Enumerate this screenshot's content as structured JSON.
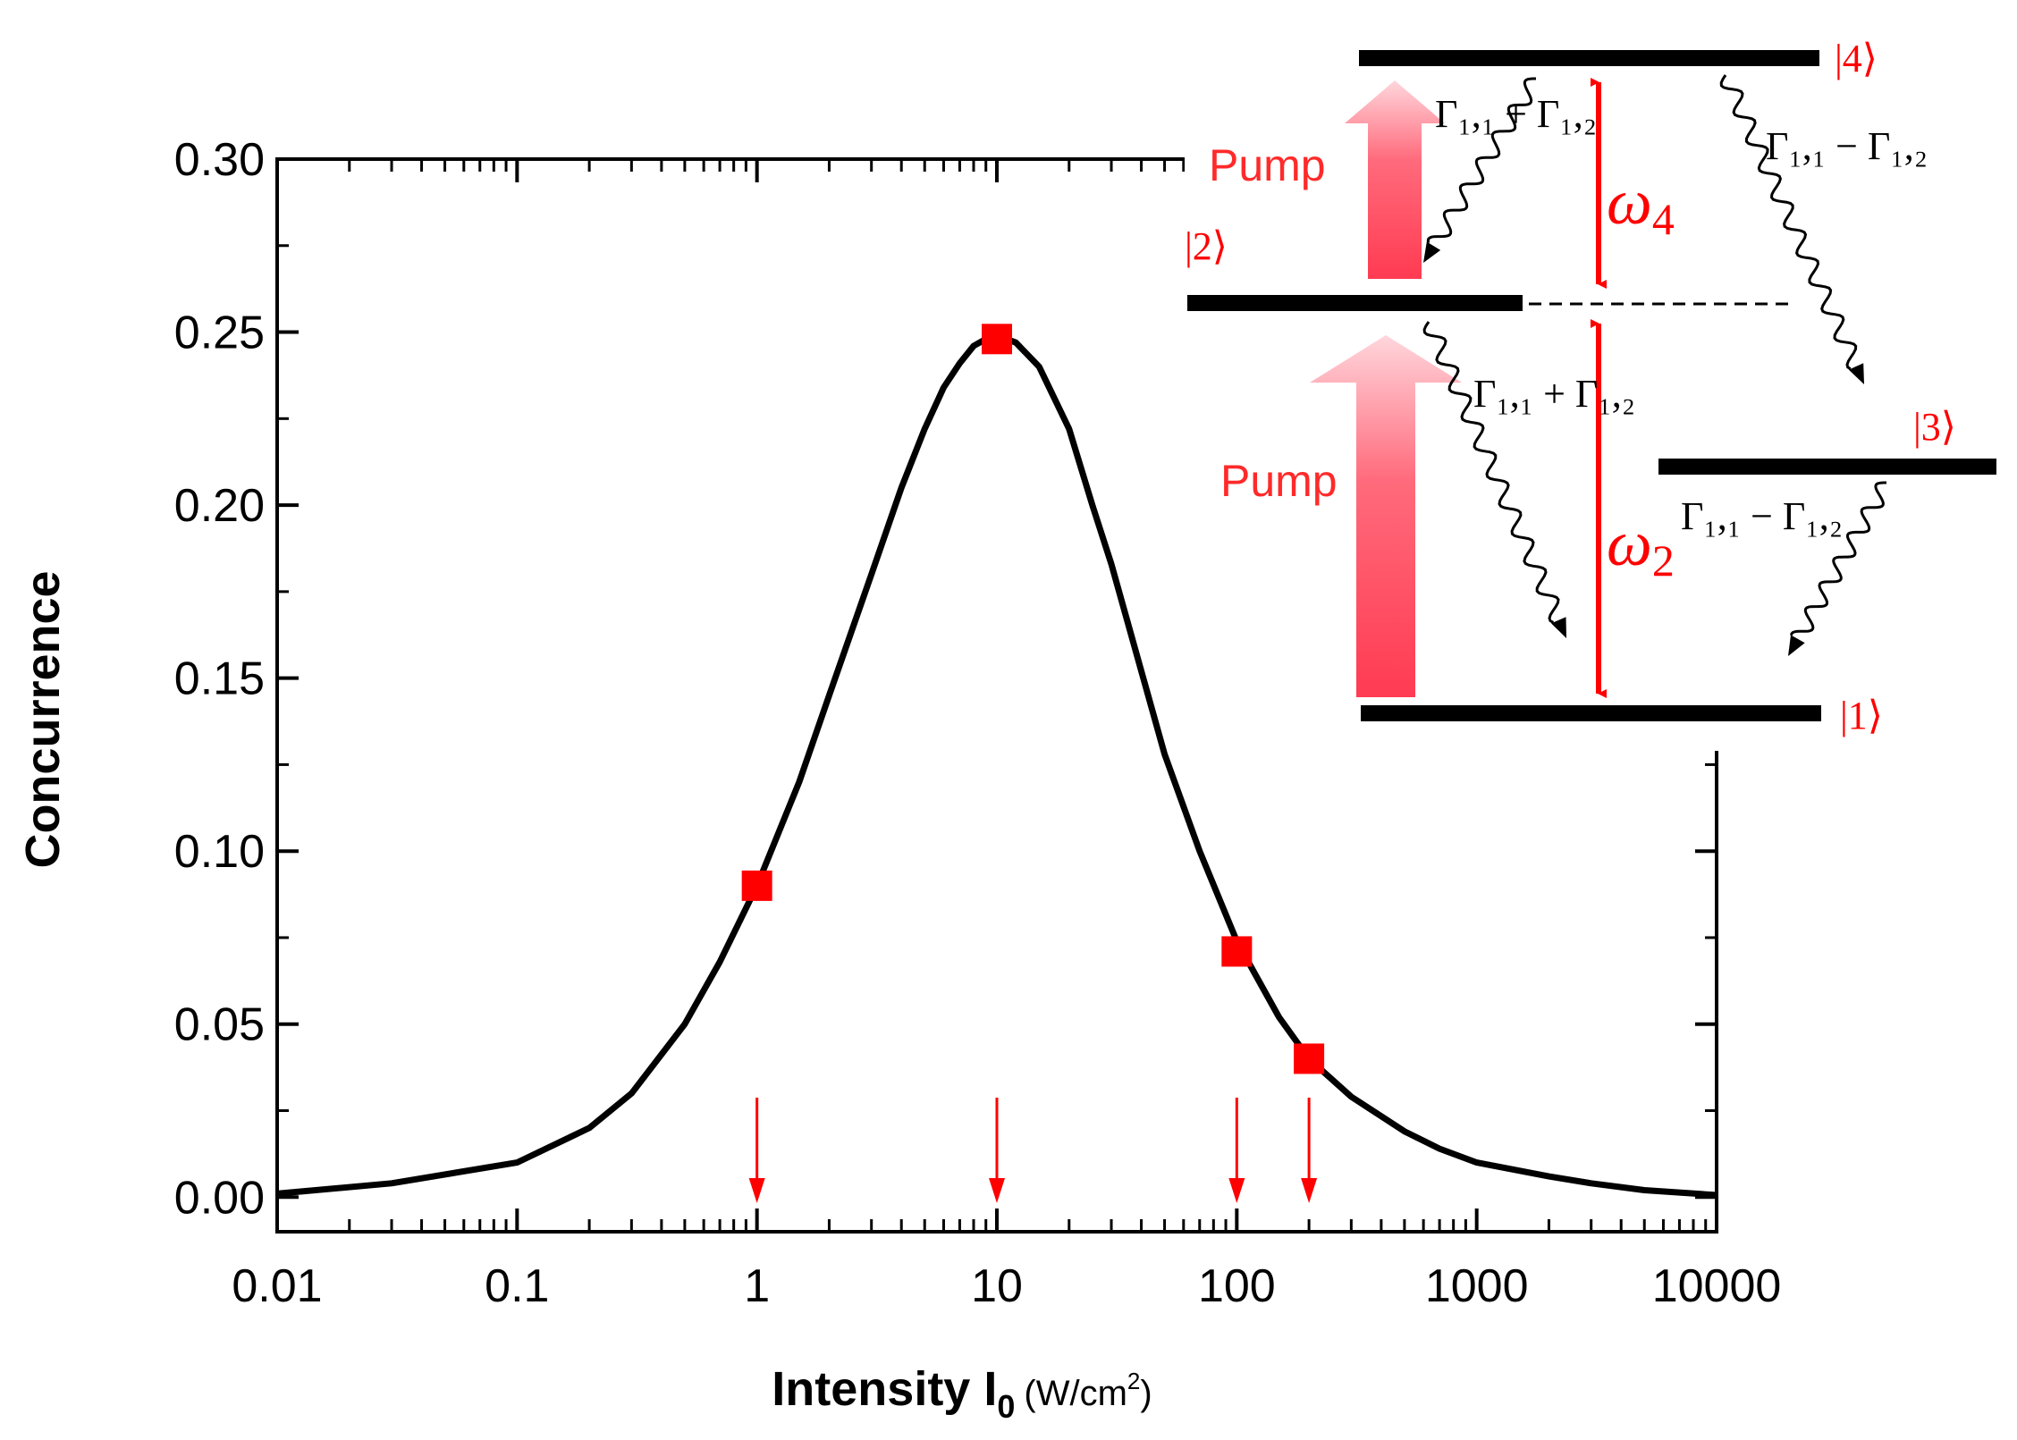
{
  "chart_data": {
    "type": "line",
    "title": "",
    "xlabel_main": "Intensity I",
    "xlabel_sub": "0",
    "xlabel_units_pre": "(W/cm",
    "xlabel_units_sup": "2",
    "xlabel_units_post": ")",
    "ylabel": "Concurrence",
    "xscale": "log",
    "xlim": [
      0.01,
      10000
    ],
    "ylim": [
      -0.01,
      0.3
    ],
    "xticks": [
      0.01,
      0.1,
      1,
      10,
      100,
      1000,
      10000
    ],
    "xtick_labels": [
      "0.01",
      "0.1",
      "1",
      "10",
      "100",
      "1000",
      "10000"
    ],
    "yticks": [
      0.0,
      0.05,
      0.1,
      0.15,
      0.2,
      0.25,
      0.3
    ],
    "ytick_labels": [
      "0.00",
      "0.05",
      "0.10",
      "0.15",
      "0.20",
      "0.25",
      "0.30"
    ],
    "series": [
      {
        "name": "Concurrence curve",
        "type": "line",
        "color": "#000000",
        "x": [
          0.01,
          0.03,
          0.1,
          0.2,
          0.3,
          0.5,
          0.7,
          1,
          1.5,
          2,
          3,
          4,
          5,
          6,
          7,
          8,
          9,
          10,
          12,
          15,
          20,
          25,
          30,
          40,
          50,
          70,
          100,
          150,
          200,
          300,
          500,
          700,
          1000,
          2000,
          3000,
          5000,
          10000
        ],
        "y": [
          0.001,
          0.004,
          0.01,
          0.02,
          0.03,
          0.05,
          0.068,
          0.09,
          0.12,
          0.145,
          0.18,
          0.205,
          0.222,
          0.234,
          0.241,
          0.246,
          0.248,
          0.249,
          0.247,
          0.24,
          0.222,
          0.2,
          0.183,
          0.152,
          0.128,
          0.1,
          0.074,
          0.052,
          0.04,
          0.029,
          0.019,
          0.014,
          0.01,
          0.006,
          0.004,
          0.002,
          0.0006
        ]
      },
      {
        "name": "Marked points",
        "type": "scatter",
        "color": "#ff0000",
        "x": [
          1,
          10,
          100,
          200
        ],
        "y": [
          0.09,
          0.248,
          0.071,
          0.04
        ]
      }
    ],
    "arrows_x": [
      1,
      10,
      100,
      200
    ]
  },
  "inset": {
    "state_1": "|1⟩",
    "state_2": "|2⟩",
    "state_3": "|3⟩",
    "state_4": "|4⟩",
    "pump_upper": "Pump",
    "pump_lower": "Pump",
    "omega4": "ω",
    "omega4_sub": "4",
    "omega2": "ω",
    "omega2_sub": "2",
    "rate_sum": "Γ₁,₁ + Γ₁,₂",
    "rate_diff": "Γ₁,₁ − Γ₁,₂",
    "red": "#ff0000",
    "pump_color": "#ff4a5e"
  }
}
